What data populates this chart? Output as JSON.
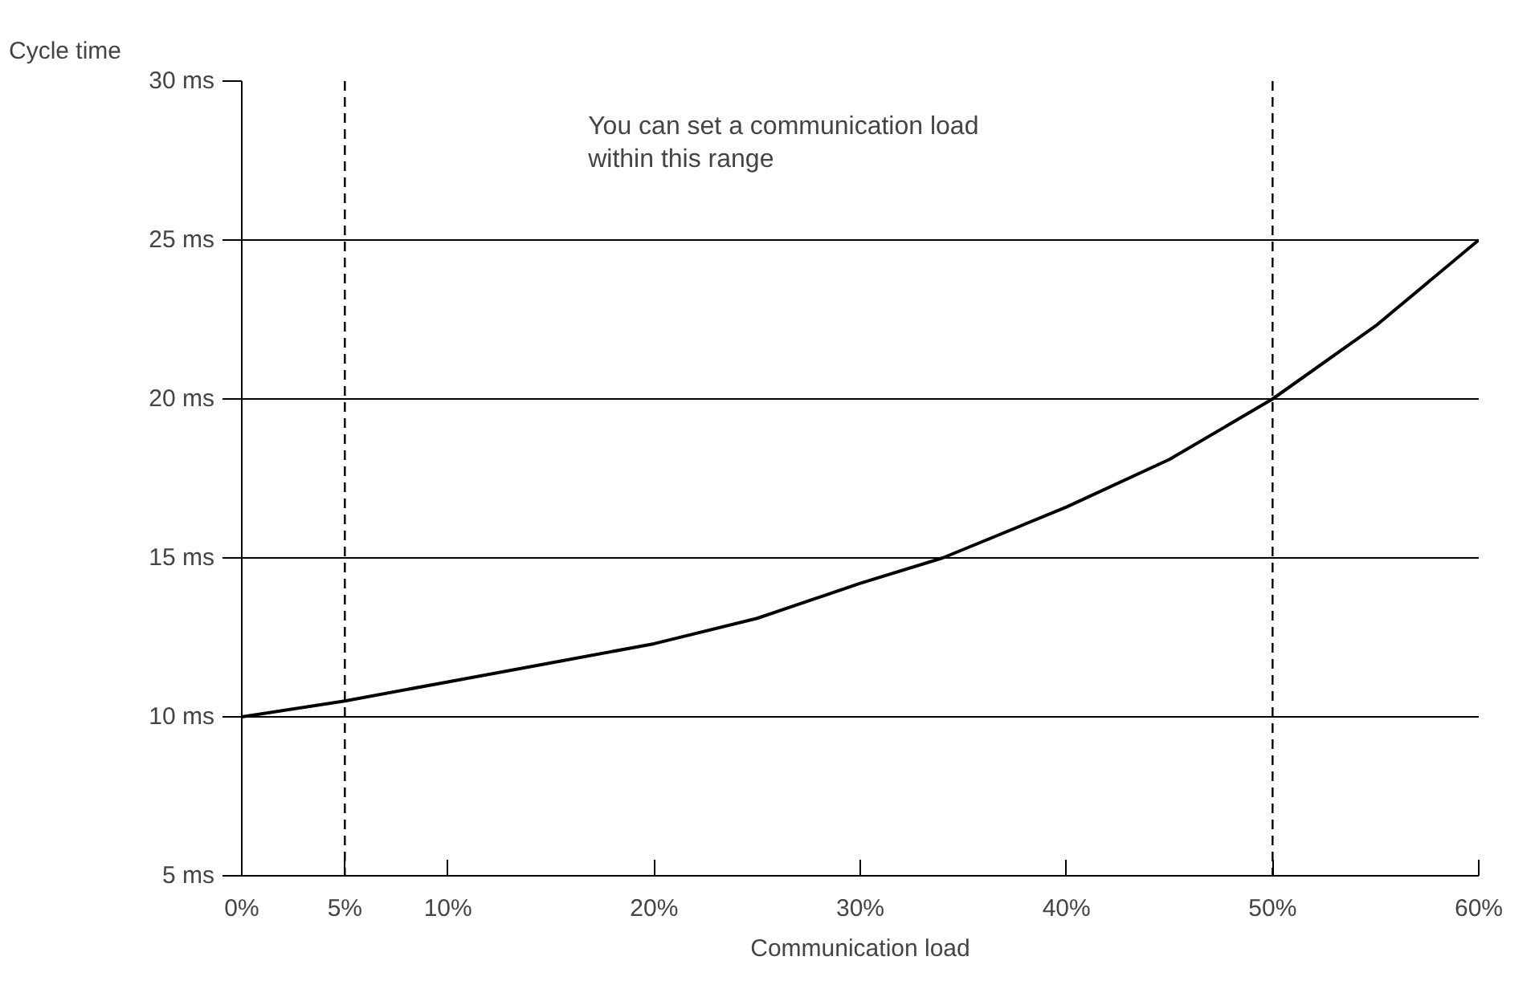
{
  "chart_data": {
    "type": "line",
    "xlabel": "Communication load",
    "ylabel": "Cycle time",
    "x": [
      0,
      5,
      10,
      15,
      20,
      25,
      30,
      34,
      40,
      45,
      50,
      55,
      60
    ],
    "series": [
      {
        "color": "#000000",
        "values": [
          10,
          10.5,
          11.1,
          11.7,
          12.3,
          13.1,
          14.2,
          15,
          16.6,
          18.1,
          20,
          22.3,
          25
        ]
      }
    ],
    "xlim": [
      0,
      60
    ],
    "ylim": [
      5,
      30
    ],
    "xticks": [
      {
        "value": 0,
        "label": "0%"
      },
      {
        "value": 5,
        "label": "5%"
      },
      {
        "value": 10,
        "label": "10%"
      },
      {
        "value": 20,
        "label": "20%"
      },
      {
        "value": 30,
        "label": "30%"
      },
      {
        "value": 40,
        "label": "40%"
      },
      {
        "value": 50,
        "label": "50%"
      },
      {
        "value": 60,
        "label": "60%"
      }
    ],
    "yticks": [
      {
        "value": 5,
        "label": "5 ms"
      },
      {
        "value": 10,
        "label": "10 ms"
      },
      {
        "value": 15,
        "label": "15 ms"
      },
      {
        "value": 20,
        "label": "20 ms"
      },
      {
        "value": 25,
        "label": "25 ms"
      },
      {
        "value": 30,
        "label": "30 ms"
      }
    ],
    "ref_lines": [
      {
        "axis": "x",
        "value": 5,
        "line_style": "dashed",
        "color": "#000000"
      },
      {
        "axis": "x",
        "value": 50,
        "line_style": "dashed",
        "color": "#000000"
      }
    ],
    "annotations": [
      "You can set a communication load\nwithin this range"
    ],
    "grid": "y",
    "marker": "none",
    "line_style": "solid"
  }
}
